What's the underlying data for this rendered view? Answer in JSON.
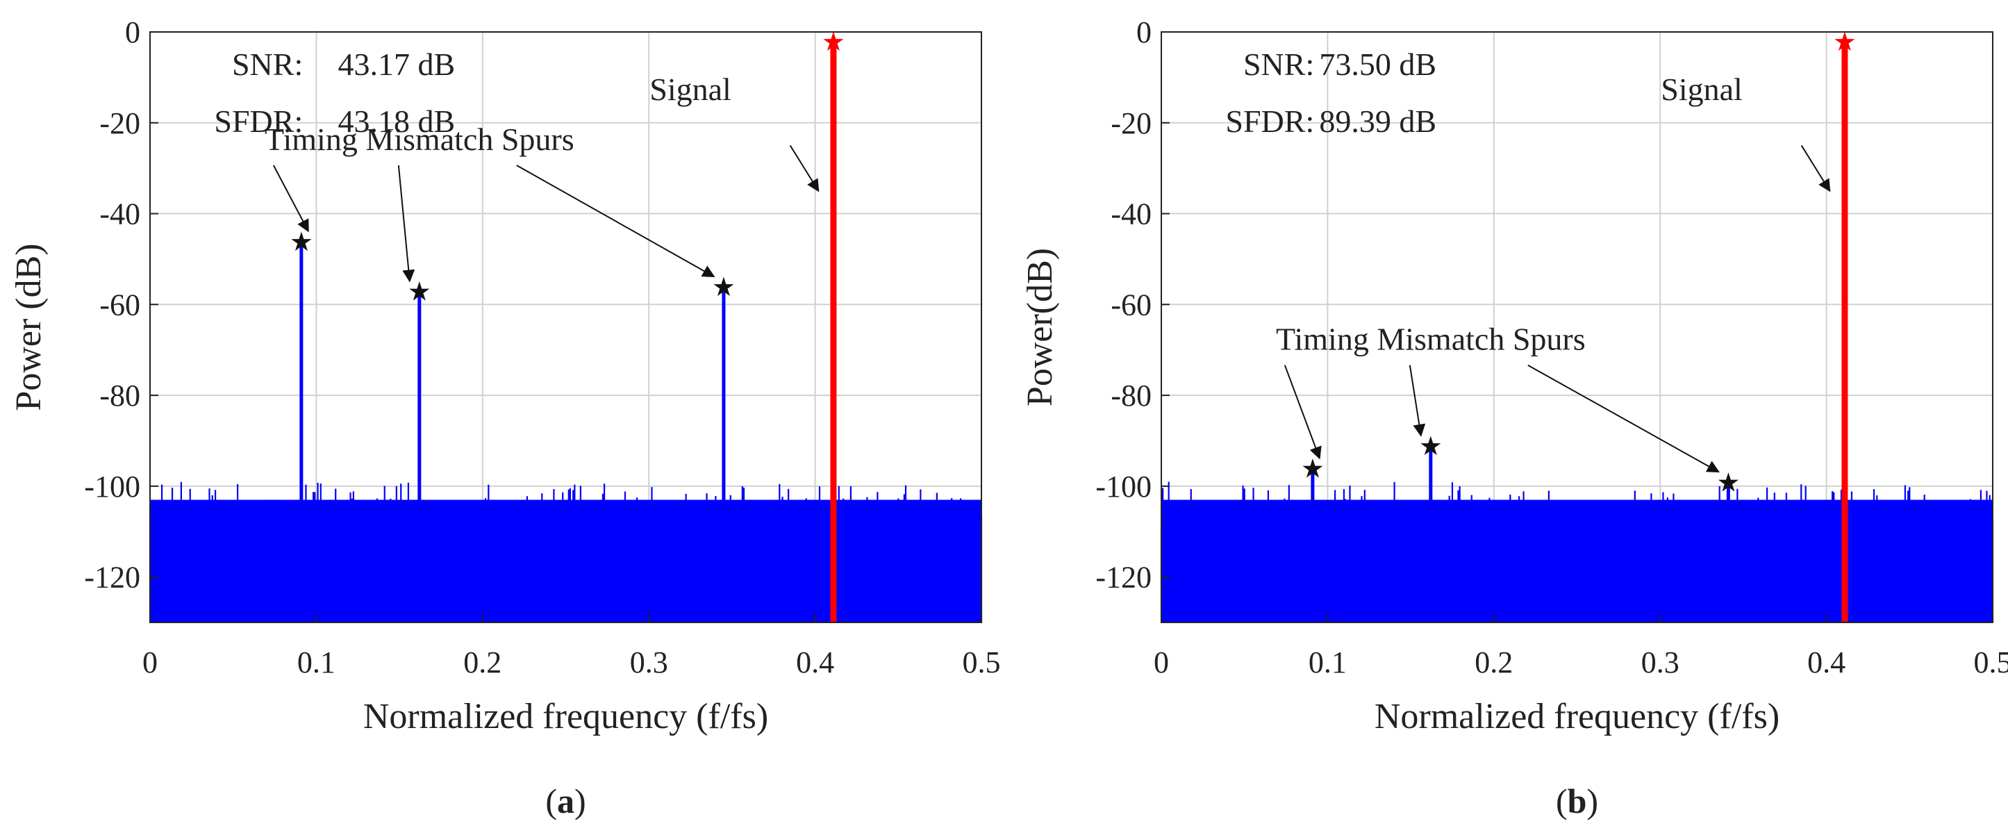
{
  "chart_data": [
    {
      "type": "line",
      "panel": "a",
      "caption": "(a)",
      "caption_letter": "a",
      "xlabel": "Normalized frequency (f/fs)",
      "ylabel": "Power (dB)",
      "xlim": [
        0,
        0.5
      ],
      "ylim": [
        -130,
        0
      ],
      "xticks": [
        0,
        0.1,
        0.2,
        0.3,
        0.4,
        0.5
      ],
      "xtick_labels": [
        "0",
        "0.1",
        "0.2",
        "0.3",
        "0.4",
        "0.5"
      ],
      "yticks": [
        0,
        -20,
        -40,
        -60,
        -80,
        -100,
        -120
      ],
      "ytick_labels": [
        "0",
        "-20",
        "-40",
        "-60",
        "-80",
        "-100",
        "-120"
      ],
      "grid": true,
      "noise_floor": {
        "min_db": -130,
        "typical_top_db": -106,
        "max_top_db": -101
      },
      "signal": {
        "x": 0.411,
        "y": -2,
        "label": "Signal",
        "color": "#ff0000"
      },
      "spurs": [
        {
          "x": 0.091,
          "y": -46
        },
        {
          "x": 0.162,
          "y": -57
        },
        {
          "x": 0.345,
          "y": -56
        }
      ],
      "spur_label": "Timing Mismatch Spurs",
      "series_color": "#0000ff",
      "stats": [
        {
          "label": "SNR:",
          "value": "43.17 dB"
        },
        {
          "label": "SFDR:",
          "value": "43.18 dB"
        }
      ],
      "annotation_positions": {
        "signal_text": [
          0.325,
          -15
        ],
        "signal_arrow": [
          0.385,
          -25,
          0.402,
          -35
        ],
        "spur_text": [
          0.162,
          -26
        ],
        "stats_anchor": [
          0.092,
          -4
        ],
        "stats_value_anchor": [
          0.113,
          -4
        ]
      }
    },
    {
      "type": "line",
      "panel": "b",
      "caption": "(b)",
      "caption_letter": "b",
      "xlabel": "Normalized frequency (f/fs)",
      "ylabel": "Power(dB)",
      "xlim": [
        0,
        0.5
      ],
      "ylim": [
        -130,
        0
      ],
      "xticks": [
        0,
        0.1,
        0.2,
        0.3,
        0.4,
        0.5
      ],
      "xtick_labels": [
        "0",
        "0.1",
        "0.2",
        "0.3",
        "0.4",
        "0.5"
      ],
      "yticks": [
        0,
        -20,
        -40,
        -60,
        -80,
        -100,
        -120
      ],
      "ytick_labels": [
        "0",
        "-20",
        "-40",
        "-60",
        "-80",
        "-100",
        "-120"
      ],
      "grid": true,
      "noise_floor": {
        "min_db": -130,
        "typical_top_db": -106,
        "max_top_db": -101
      },
      "signal": {
        "x": 0.411,
        "y": -2,
        "label": "Signal",
        "color": "#ff0000"
      },
      "spurs": [
        {
          "x": 0.091,
          "y": -96
        },
        {
          "x": 0.162,
          "y": -91
        },
        {
          "x": 0.341,
          "y": -99
        }
      ],
      "spur_label": "Timing Mismatch Spurs",
      "series_color": "#0000ff",
      "stats": [
        {
          "label": "SNR:",
          "value": "73.50 dB"
        },
        {
          "label": "SFDR:",
          "value": "89.39 dB"
        }
      ],
      "annotation_positions": {
        "signal_text": [
          0.325,
          -15
        ],
        "signal_arrow": [
          0.385,
          -25,
          0.402,
          -35
        ],
        "spur_text": [
          0.162,
          -70
        ],
        "stats_anchor": [
          0.092,
          -4
        ],
        "stats_value_anchor": [
          0.095,
          -4
        ]
      }
    }
  ]
}
